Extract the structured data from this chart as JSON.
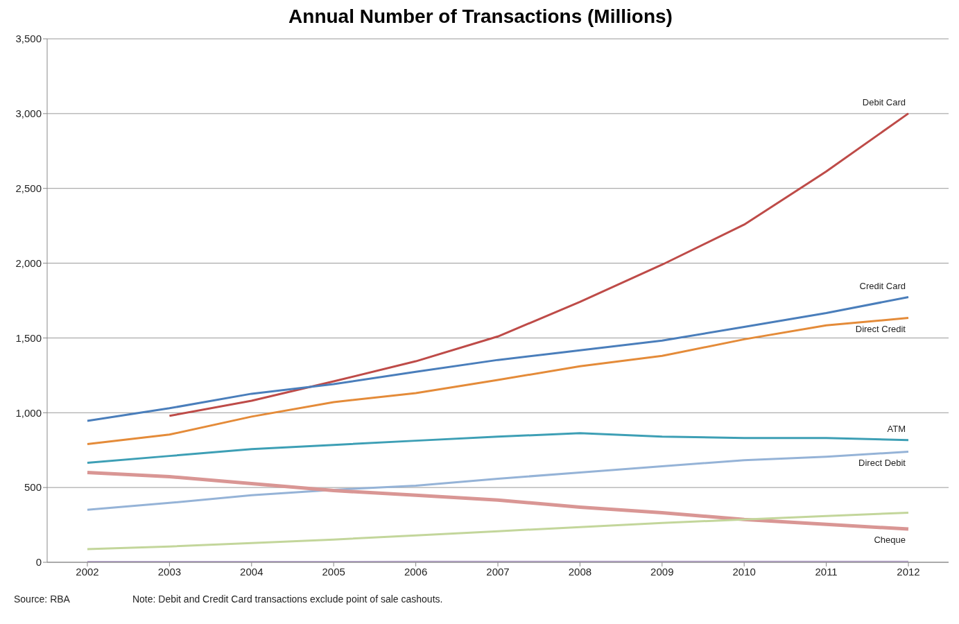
{
  "chart_data": {
    "type": "line",
    "title": "Annual Number of Transactions (Millions)",
    "categories": [
      "2002",
      "2003",
      "2004",
      "2005",
      "2006",
      "2007",
      "2008",
      "2009",
      "2010",
      "2011",
      "2012"
    ],
    "series": [
      {
        "name": "Debit Card",
        "color": "#be4b48",
        "values": [
          null,
          979,
          1080,
          1210,
          1344,
          1510,
          1741,
          1990,
          2258,
          2613,
          3001
        ]
      },
      {
        "name": "Direct Credit",
        "color": "#e48b39",
        "values": [
          790,
          854,
          974,
          1071,
          1131,
          1219,
          1311,
          1380,
          1491,
          1584,
          1634
        ]
      },
      {
        "name": "Credit Card",
        "color": "#4a7ebb",
        "values": [
          946,
          1030,
          1127,
          1191,
          1274,
          1353,
          1417,
          1482,
          1574,
          1667,
          1773
        ]
      },
      {
        "name": "Direct Debit",
        "color": "#95b3d7",
        "values": [
          351,
          397,
          448,
          485,
          512,
          559,
          600,
          642,
          683,
          706,
          739
        ]
      },
      {
        "name": "ATM",
        "color": "#3d9fb5",
        "values": [
          665,
          711,
          757,
          785,
          813,
          840,
          863,
          840,
          831,
          831,
          817
        ]
      },
      {
        "name": "Cheque",
        "color": "#d99694",
        "values": [
          600,
          573,
          526,
          480,
          448,
          416,
          369,
          332,
          286,
          254,
          222
        ]
      },
      {
        "color": "#c3d69b",
        "values": [
          88,
          106,
          129,
          152,
          180,
          208,
          235,
          263,
          286,
          309,
          332
        ]
      },
      {
        "color": "#b3a2c7",
        "values": [
          2,
          2,
          2,
          2,
          3,
          4,
          4,
          4,
          4,
          4,
          4
        ]
      }
    ],
    "ylim": [
      0,
      3500
    ],
    "yticks": [
      0,
      500,
      {
        "value": 1000,
        "label": "1,000"
      },
      {
        "value": 1500,
        "label": "1,500"
      },
      {
        "value": 2000,
        "label": "2,000"
      },
      {
        "value": 2500,
        "label": "2,500"
      },
      {
        "value": 3000,
        "label": "3,000"
      },
      {
        "value": 3500,
        "label": "3,500"
      }
    ],
    "grid": "y",
    "legend": false,
    "marker": "none",
    "line_style": "solid",
    "annotations": [
      "Source: RBA",
      "Note: Debit and Credit Card transactions exclude point of sale cashouts."
    ]
  }
}
